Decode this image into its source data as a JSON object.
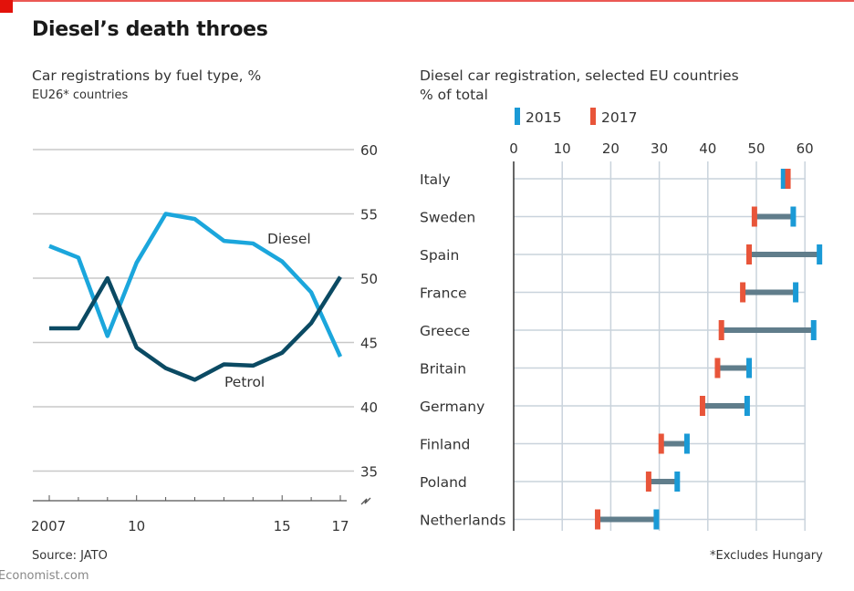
{
  "header": {
    "title": "Diesel’s death throes",
    "brand_color": "#e3120b"
  },
  "footer": {
    "source": "Source: JATO",
    "footnote": "*Excludes Hungary",
    "watermark": "Economist.com"
  },
  "chart_data": [
    {
      "type": "line",
      "title": "Car registrations by fuel type, %",
      "subtitle": "EU26* countries",
      "xlabel": "",
      "ylabel": "",
      "x": [
        2007,
        2008,
        2009,
        2010,
        2011,
        2012,
        2013,
        2014,
        2015,
        2016,
        2017
      ],
      "x_tick_values": [
        2007,
        2010,
        2015,
        2017
      ],
      "x_tick_labels": [
        "2007",
        "10",
        "15",
        "17"
      ],
      "ylim": [
        35,
        60
      ],
      "y_ticks": [
        60,
        55,
        50,
        45,
        40,
        35
      ],
      "y_axis_side": "right",
      "axis_break": true,
      "grid": true,
      "series": [
        {
          "name": "Diesel",
          "color": "#1ba6dc",
          "values": [
            52.5,
            51.6,
            45.5,
            51.2,
            55.0,
            54.6,
            52.9,
            52.7,
            51.3,
            48.9,
            43.9
          ]
        },
        {
          "name": "Petrol",
          "color": "#0b4a63",
          "values": [
            46.1,
            46.1,
            50.0,
            44.6,
            43.0,
            42.1,
            43.3,
            43.2,
            44.2,
            46.5,
            50.1
          ]
        }
      ]
    },
    {
      "type": "dumbbell",
      "title": "Diesel car registration, selected EU countries",
      "subtitle": "% of total",
      "xlim": [
        0,
        60
      ],
      "x_ticks": [
        0,
        10,
        20,
        30,
        40,
        50,
        60
      ],
      "x_axis_position": "top",
      "grid": true,
      "legend": [
        {
          "label": "2015",
          "color": "#1a9ad6"
        },
        {
          "label": "2017",
          "color": "#e8553a"
        }
      ],
      "connector_color": "#607d8b",
      "categories": [
        "Italy",
        "Sweden",
        "Spain",
        "France",
        "Greece",
        "Britain",
        "Germany",
        "Finland",
        "Poland",
        "Netherlands"
      ],
      "series": [
        {
          "name": "2015",
          "values": [
            55.6,
            57.6,
            63.0,
            58.1,
            61.8,
            48.5,
            48.1,
            35.7,
            33.7,
            29.4
          ]
        },
        {
          "name": "2017",
          "values": [
            56.5,
            49.6,
            48.5,
            47.2,
            42.8,
            42.0,
            38.9,
            30.4,
            27.8,
            17.3
          ]
        }
      ]
    }
  ]
}
